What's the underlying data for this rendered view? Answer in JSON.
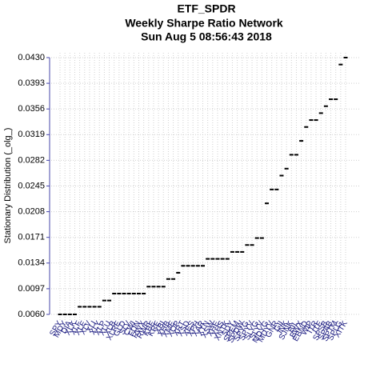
{
  "chart_data": {
    "type": "scatter",
    "title": "ETF_SPDR",
    "subtitle": "Weekly  Sharpe Ratio Network",
    "date": "Sun Aug  5 08:56:43 2018",
    "y_label": "Stationary Distribution (_olg_)",
    "categories": [
      "SPY",
      "MDY",
      "DIA",
      "XLK",
      "XLF",
      "XLE",
      "XLV",
      "XLI",
      "XLY",
      "XLP",
      "XLU",
      "XLB",
      "XLRE",
      "GLD",
      "SLV",
      "CWI",
      "FDN",
      "RWX",
      "RWR",
      "KBE",
      "KRE",
      "XBI",
      "XHB",
      "XME",
      "XOP",
      "XRT",
      "XSD",
      "XES",
      "XPH",
      "XAR",
      "XTN",
      "XSW",
      "XHE",
      "XHS",
      "XNTK",
      "SDY",
      "SPEM",
      "SPDW",
      "SPYG",
      "SPYV",
      "SLYG",
      "SLYV",
      "MDYG",
      "MDYV",
      "GNR",
      "GII",
      "JNK",
      "SJNK",
      "BIL",
      "BWX",
      "EBND",
      "WIP",
      "ITR",
      "ITE",
      "SPSB",
      "SPAB",
      "SPTM",
      "SPLG",
      "XITK"
    ],
    "values": [
      0.006,
      0.006,
      0.006,
      0.006,
      0.0071,
      0.0071,
      0.0071,
      0.0071,
      0.0071,
      0.008,
      0.008,
      0.009,
      0.009,
      0.009,
      0.009,
      0.009,
      0.009,
      0.009,
      0.01,
      0.01,
      0.01,
      0.01,
      0.0111,
      0.0111,
      0.012,
      0.013,
      0.013,
      0.013,
      0.013,
      0.013,
      0.014,
      0.014,
      0.014,
      0.014,
      0.014,
      0.015,
      0.015,
      0.015,
      0.016,
      0.016,
      0.017,
      0.017,
      0.022,
      0.024,
      0.024,
      0.026,
      0.027,
      0.029,
      0.029,
      0.031,
      0.033,
      0.034,
      0.034,
      0.035,
      0.036,
      0.037,
      0.037,
      0.042,
      0.043
    ],
    "color": "#000000",
    "ylim": [
      0.006,
      0.043
    ],
    "yticks": [
      {
        "value": 0.006,
        "label": "0.0060"
      },
      0.0097,
      0.0134,
      0.0171,
      0.0208,
      0.0245,
      0.0282,
      0.0319,
      0.0356,
      0.0393,
      {
        "value": 0.043,
        "label": "0.0430"
      }
    ],
    "grid": true
  }
}
